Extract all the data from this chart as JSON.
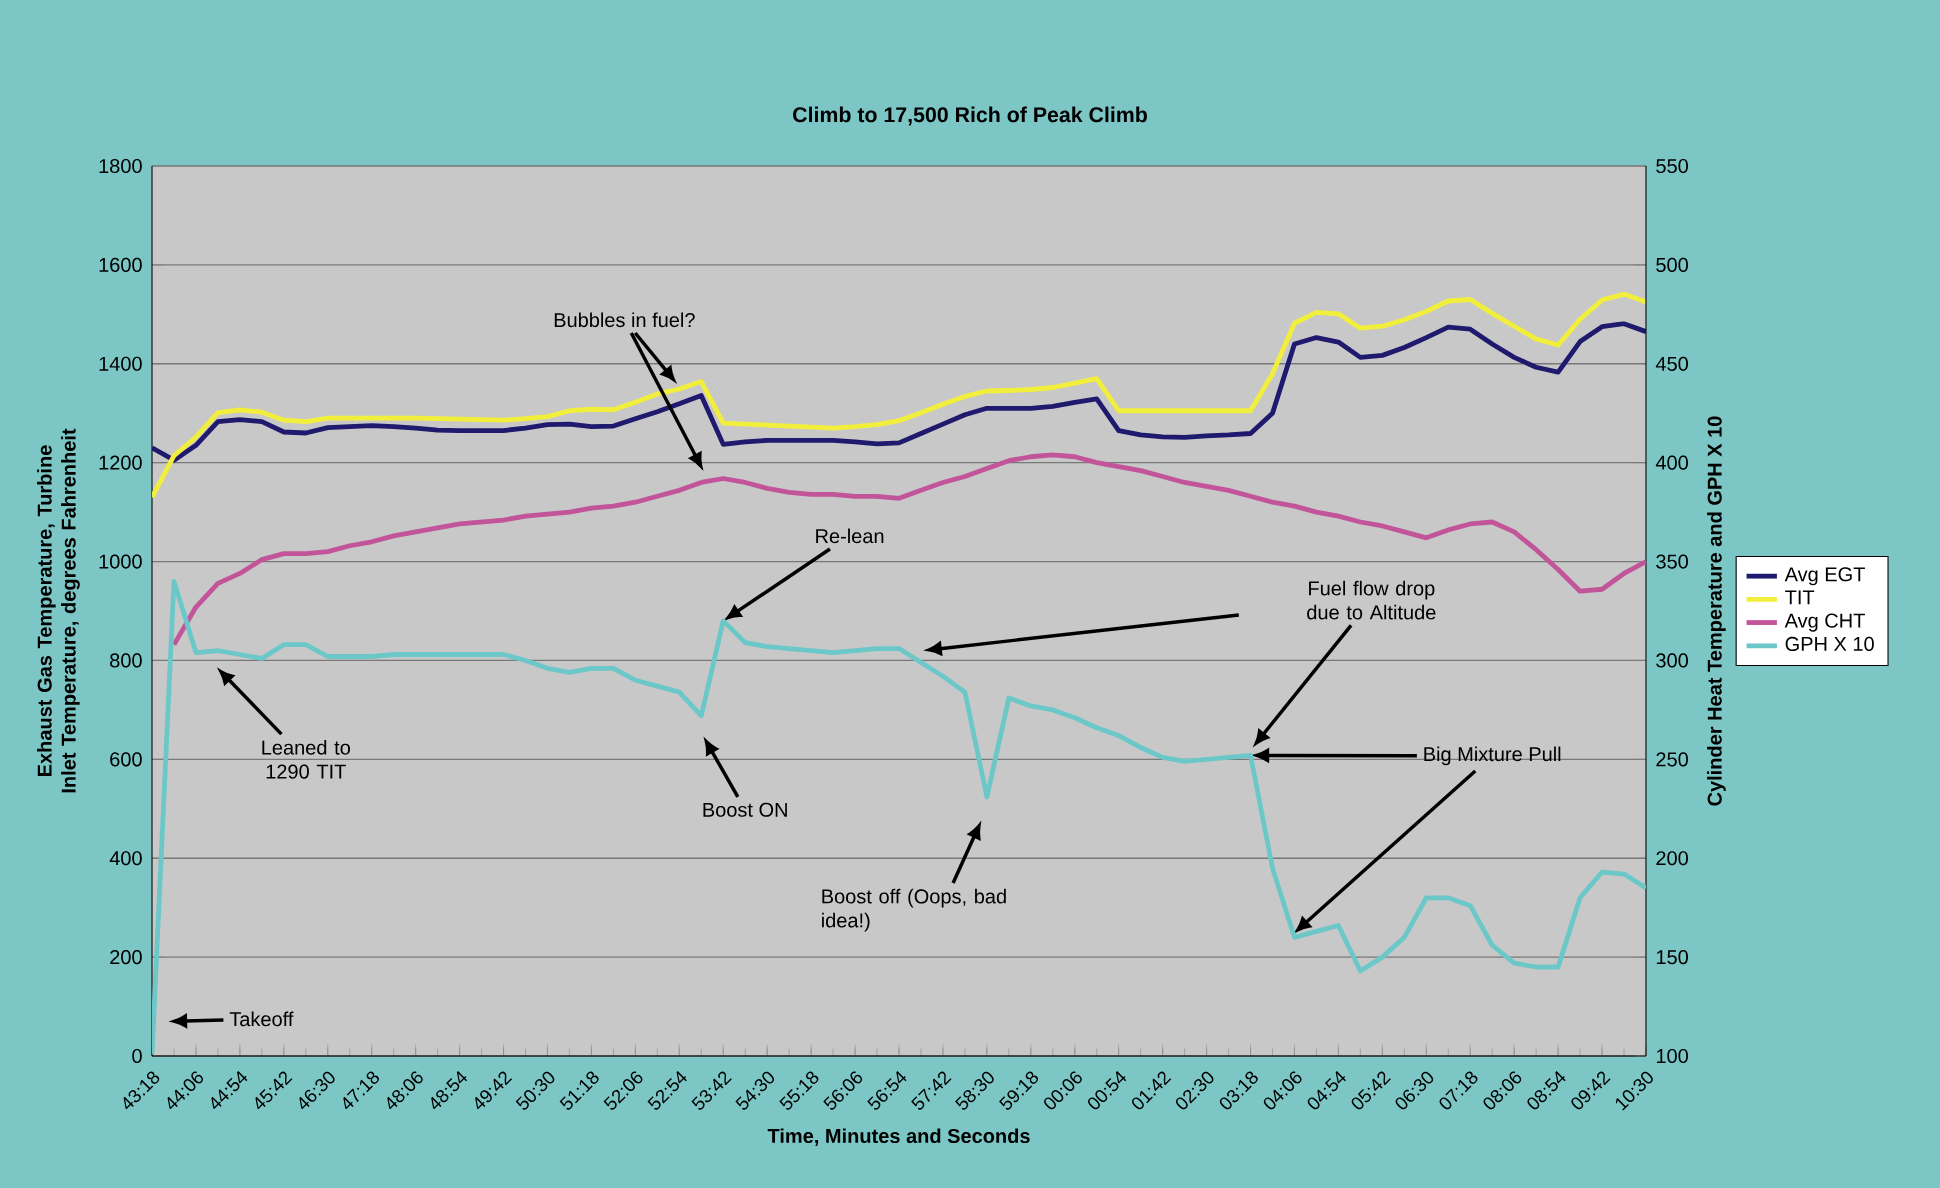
{
  "chart_data": {
    "type": "line",
    "title": "Climb to 17,500 Rich of Peak Climb",
    "xlabel": "Time, Minutes and Seconds",
    "ylabel": "Exhaust Gas Temperature, Turbine Inlet Temperature, degrees Fahrenheit",
    "y2label": "Cylinder Heat Temperature and GPH X 10",
    "categories": [
      "43:18",
      null,
      "44:06",
      null,
      "44:54",
      null,
      "45:42",
      null,
      "46:30",
      null,
      "47:18",
      null,
      "48:06",
      null,
      "48:54",
      null,
      "49:42",
      null,
      "50:30",
      null,
      "51:18",
      null,
      "52:06",
      null,
      "52:54",
      null,
      "53:42",
      null,
      "54:30",
      null,
      "55:18",
      null,
      "56:06",
      null,
      "56:54",
      null,
      "57:42",
      null,
      "58:30",
      null,
      "59:18",
      null,
      "00:06",
      null,
      "00:54",
      null,
      "01:42",
      null,
      "02:30",
      null,
      "03:18",
      null,
      "04:06",
      null,
      "04:54",
      null,
      "05:42",
      null,
      "06:30",
      null,
      "07:18",
      null,
      "08:06",
      null,
      "08:54",
      null,
      "09:42",
      null,
      "10:30"
    ],
    "ylim": [
      0,
      1800
    ],
    "yticks": [
      0,
      200,
      400,
      600,
      800,
      1000,
      1200,
      1400,
      1600,
      1800
    ],
    "y2lim": [
      100,
      550
    ],
    "y2ticks": [
      100,
      150,
      200,
      250,
      300,
      350,
      400,
      450,
      500,
      550
    ],
    "grid": "y",
    "legend": "right",
    "series": [
      {
        "name": "Avg EGT",
        "color": "#1f1a6e",
        "values": [
          1230,
          1205,
          1235,
          1283,
          1287,
          1283,
          1262,
          1260,
          1271,
          1273,
          1275,
          1273,
          1270,
          1266,
          1265,
          1265,
          1265,
          1270,
          1277,
          1278,
          1273,
          1274,
          1289,
          1303,
          1319,
          1336,
          1237,
          1242,
          1245,
          1245,
          1245,
          1245,
          1242,
          1238,
          1240,
          1259,
          1278,
          1297,
          1310,
          1310,
          1310,
          1314,
          1322,
          1329,
          1265,
          1256,
          1252,
          1251,
          1254,
          1256,
          1259,
          1300,
          1440,
          1453,
          1444,
          1413,
          1417,
          1433,
          1453,
          1474,
          1470,
          1440,
          1413,
          1393,
          1383,
          1445,
          1475,
          1481,
          1465
        ]
      },
      {
        "name": "TIT",
        "color": "#f2ef3c",
        "values": [
          1130,
          1214,
          1252,
          1301,
          1307,
          1302,
          1286,
          1283,
          1290,
          1290,
          1290,
          1290,
          1290,
          1289,
          1288,
          1287,
          1286,
          1289,
          1293,
          1305,
          1308,
          1307,
          1322,
          1339,
          1349,
          1364,
          1280,
          1278,
          1276,
          1274,
          1272,
          1270,
          1273,
          1277,
          1285,
          1301,
          1318,
          1334,
          1345,
          1346,
          1348,
          1352,
          1361,
          1370,
          1305,
          1305,
          1305,
          1305,
          1305,
          1305,
          1305,
          1380,
          1482,
          1504,
          1501,
          1472,
          1476,
          1489,
          1506,
          1527,
          1530,
          1502,
          1476,
          1450,
          1438,
          1490,
          1529,
          1541,
          1525
        ]
      },
      {
        "name": "Avg CHT",
        "color": "#c2559a",
        "axis": "y2",
        "values": [
          null,
          308,
          327,
          339,
          344,
          351,
          354,
          354,
          355,
          358,
          360,
          363,
          365,
          367,
          369,
          370,
          371,
          373,
          374,
          375,
          377,
          378,
          380,
          383,
          386,
          390,
          392,
          390,
          387,
          385,
          384,
          384,
          383,
          383,
          382,
          386,
          390,
          393,
          397,
          401,
          403,
          404,
          403,
          400,
          398,
          396,
          393,
          390,
          388,
          386,
          383,
          380,
          378,
          375,
          373,
          370,
          368,
          365,
          362,
          366,
          369,
          370,
          365,
          356,
          346,
          335,
          336,
          344,
          350
        ]
      },
      {
        "name": "GPH X 10",
        "color": "#6cc8c8",
        "axis": "y2",
        "values": [
          101,
          340,
          304,
          305,
          303,
          301,
          308,
          308,
          302,
          302,
          302,
          303,
          303,
          303,
          303,
          303,
          303,
          300,
          296,
          294,
          296,
          296,
          290,
          287,
          284,
          272,
          320,
          309,
          307,
          306,
          305,
          304,
          305,
          306,
          306,
          299,
          292,
          284,
          231,
          281,
          277,
          275,
          271,
          266,
          262,
          256,
          251,
          249,
          250,
          251,
          252,
          195,
          160,
          163,
          166,
          143,
          150,
          160,
          180,
          180,
          176,
          156,
          147,
          145,
          145,
          180,
          193,
          192,
          185
        ]
      }
    ],
    "annotations": [
      "Takeoff",
      "Leaned to 1290 TIT",
      "Bubbles in fuel?",
      {
        "text": "Re-lean",
        "x": "53:42",
        "y": 880
      },
      "Boost ON",
      "Boost off (Oops, bad idea!)",
      "Fuel flow drop due to Altitude",
      {
        "text": "Big Mixture Pull",
        "x": "03:18",
        "y": 608
      }
    ]
  }
}
